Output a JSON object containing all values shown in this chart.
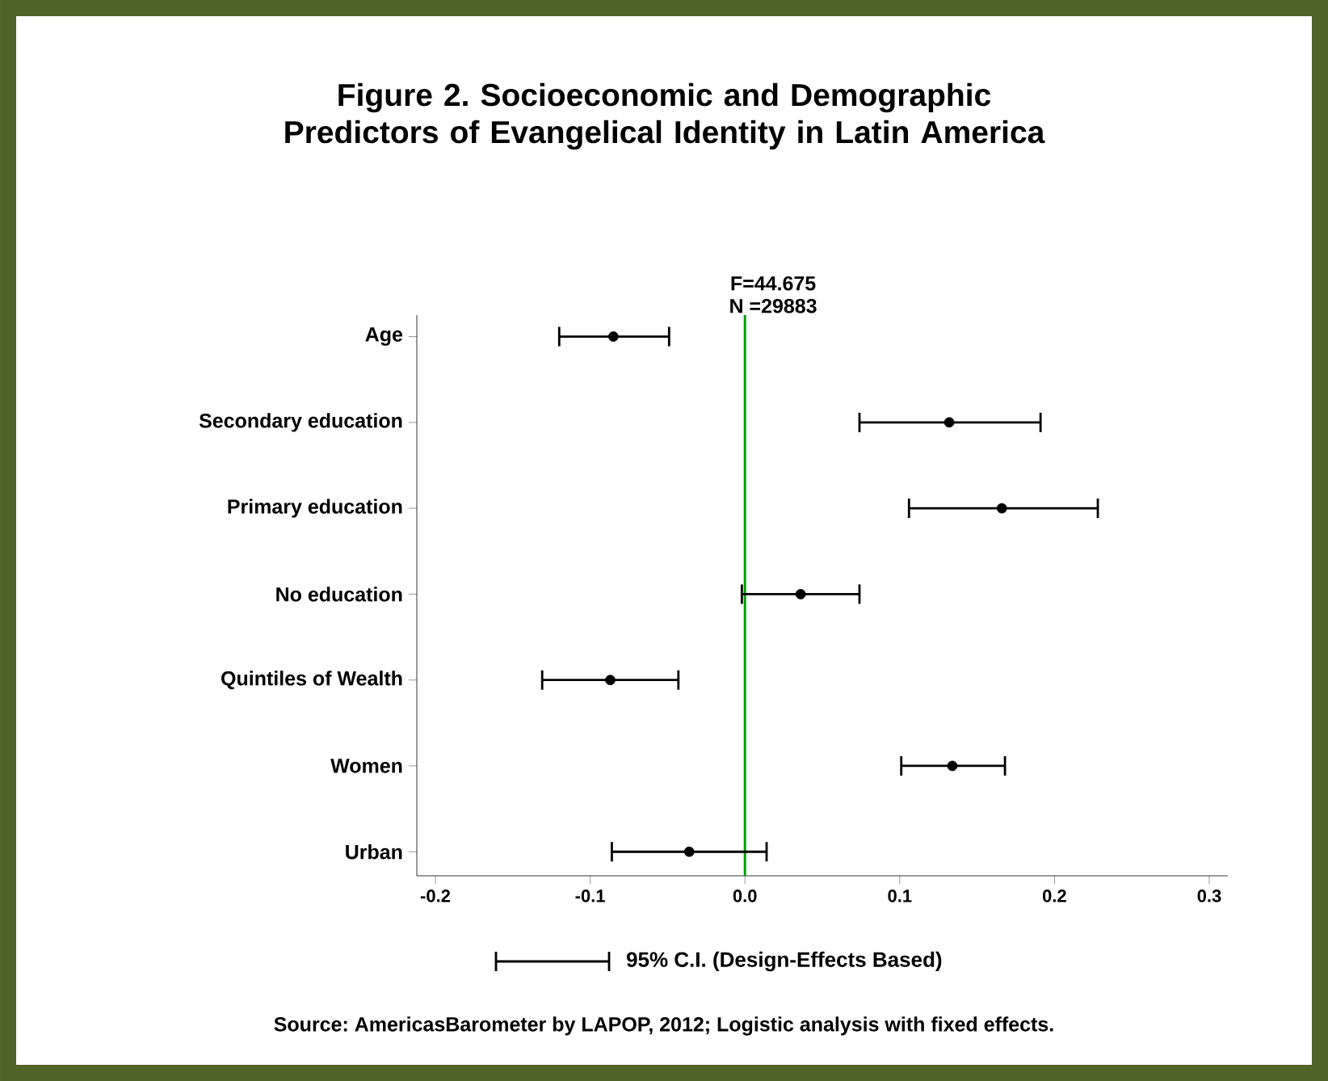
{
  "chart_data": {
    "type": "scatter",
    "orientation": "horizontal",
    "title": "Figure 2. Socioeconomic and Demographic Predictors of Evangelical Identity in Latin America",
    "categories": [
      "Age",
      "Secondary education",
      "Primary education",
      "No education",
      "Quintiles of Wealth",
      "Women",
      "Urban"
    ],
    "series": [
      {
        "name": "95% C.I. (Design-Effects Based)",
        "color": "#000000",
        "values": [
          -0.085,
          0.132,
          0.166,
          0.036,
          -0.087,
          0.134,
          -0.036
        ],
        "errors": [
          [
            -0.12,
            -0.049
          ],
          [
            0.074,
            0.191
          ],
          [
            0.106,
            0.228
          ],
          [
            -0.002,
            0.074
          ],
          [
            -0.131,
            -0.043
          ],
          [
            0.101,
            0.168
          ],
          [
            -0.086,
            0.014
          ]
        ]
      }
    ],
    "xlim": [
      -0.212,
      0.312
    ],
    "xticks": [
      -0.2,
      -0.1,
      {
        "value": 0,
        "label": "0.0"
      },
      0.1,
      0.2,
      0.3
    ],
    "ref_lines": [
      {
        "axis": "x",
        "value": 0,
        "color": "#00a000"
      }
    ],
    "annotations": [
      "F=44.675",
      "N =29883",
      "Source: AmericasBarometer by LAPOP, 2012; Logistic analysis with fixed effects."
    ],
    "marker": "circle",
    "legend": "bottom",
    "grid": false
  }
}
